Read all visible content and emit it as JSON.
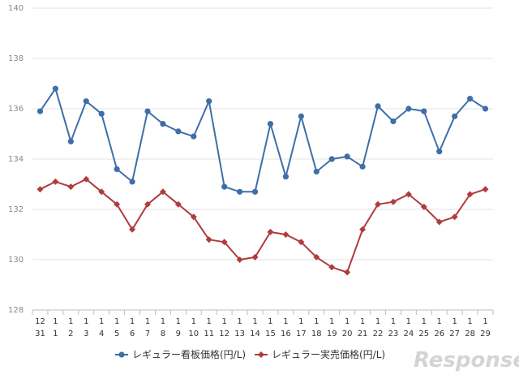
{
  "chart_data": {
    "type": "line",
    "title": "",
    "xlabel": "",
    "ylabel": "",
    "ylim": [
      128,
      140
    ],
    "yticks": [
      128,
      130,
      132,
      134,
      136,
      138,
      140
    ],
    "grid": "horizontal",
    "legend_position": "bottom-center",
    "categories": [
      [
        "12",
        "31"
      ],
      [
        "1",
        "1"
      ],
      [
        "1",
        "2"
      ],
      [
        "1",
        "3"
      ],
      [
        "1",
        "4"
      ],
      [
        "1",
        "5"
      ],
      [
        "1",
        "6"
      ],
      [
        "1",
        "7"
      ],
      [
        "1",
        "8"
      ],
      [
        "1",
        "9"
      ],
      [
        "1",
        "10"
      ],
      [
        "1",
        "11"
      ],
      [
        "1",
        "12"
      ],
      [
        "1",
        "13"
      ],
      [
        "1",
        "14"
      ],
      [
        "1",
        "15"
      ],
      [
        "1",
        "16"
      ],
      [
        "1",
        "17"
      ],
      [
        "1",
        "18"
      ],
      [
        "1",
        "19"
      ],
      [
        "1",
        "20"
      ],
      [
        "1",
        "21"
      ],
      [
        "1",
        "22"
      ],
      [
        "1",
        "23"
      ],
      [
        "1",
        "24"
      ],
      [
        "1",
        "25"
      ],
      [
        "1",
        "26"
      ],
      [
        "1",
        "27"
      ],
      [
        "1",
        "28"
      ],
      [
        "1",
        "29"
      ]
    ],
    "series": [
      {
        "name": "レギュラー看板価格(円/L)",
        "color": "#3f6ea8",
        "marker": "circle",
        "values": [
          135.9,
          136.8,
          134.7,
          136.3,
          135.8,
          133.6,
          133.1,
          135.9,
          135.4,
          135.1,
          134.9,
          136.3,
          132.9,
          132.7,
          132.7,
          135.4,
          133.3,
          135.7,
          133.5,
          134.0,
          134.1,
          133.7,
          136.1,
          135.5,
          136.0,
          135.9,
          134.3,
          135.7,
          136.4,
          136.0
        ]
      },
      {
        "name": "レギュラー実売価格(円/L)",
        "color": "#b03c3c",
        "marker": "diamond",
        "values": [
          132.8,
          133.1,
          132.9,
          133.2,
          132.7,
          132.2,
          131.2,
          132.2,
          132.7,
          132.2,
          131.7,
          130.8,
          130.7,
          130.0,
          130.1,
          131.1,
          131.0,
          130.7,
          130.1,
          129.7,
          129.5,
          131.2,
          132.2,
          132.3,
          132.6,
          132.1,
          131.5,
          131.7,
          132.6,
          132.8
        ]
      }
    ]
  },
  "watermark": {
    "text": "Response."
  }
}
